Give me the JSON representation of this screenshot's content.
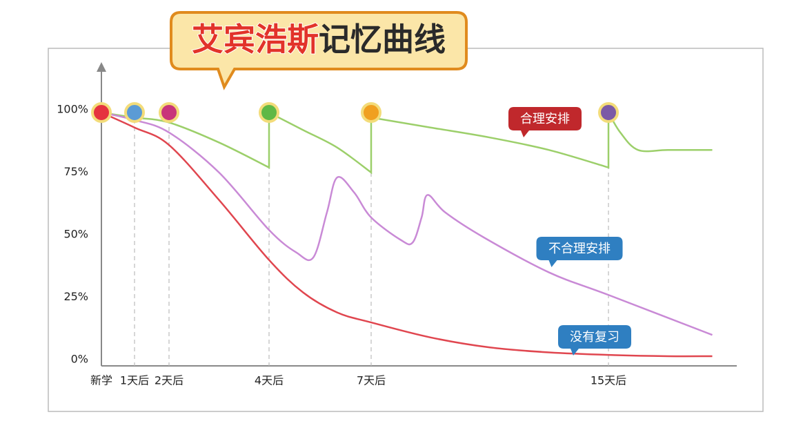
{
  "chart_data": {
    "type": "line",
    "title": [
      "艾宾浩斯",
      "记忆曲线"
    ],
    "xlim": [
      0,
      18.5
    ],
    "xticks": [
      {
        "value": 0,
        "label": "新学"
      },
      {
        "value": 1,
        "label": "1天后"
      },
      {
        "value": 2,
        "label": "2天后"
      },
      {
        "value": 4,
        "label": "4天后"
      },
      {
        "value": 7,
        "label": "7天后"
      },
      {
        "value": 15,
        "label": "15天后"
      }
    ],
    "ylim": [
      0,
      100
    ],
    "yticks": [
      {
        "value": 0,
        "label": "0%"
      },
      {
        "value": 25,
        "label": "25%"
      },
      {
        "value": 50,
        "label": "50%"
      },
      {
        "value": 75,
        "label": "75%"
      },
      {
        "value": 100,
        "label": "100%"
      }
    ],
    "series": [
      {
        "name": "合理安排",
        "color": "#9ccf6a",
        "label_color": "#c0282c",
        "x": [
          0,
          1,
          2,
          3,
          4,
          4,
          5,
          6,
          7,
          7,
          9,
          11,
          13,
          15,
          15,
          15.4,
          16,
          17,
          18.5
        ],
        "values": [
          100,
          98,
          96,
          88,
          78,
          100,
          93,
          86,
          76,
          98,
          94,
          90,
          85,
          78,
          100,
          92,
          85,
          85,
          85
        ]
      },
      {
        "name": "不合理安排",
        "color": "#c98ad6",
        "label_color": "#2f7fc1",
        "x": [
          0,
          1,
          2,
          3,
          4,
          4.8,
          5.3,
          5.7,
          6,
          6.5,
          7,
          8,
          8.4,
          8.7,
          8.9,
          9.5,
          10.8,
          13,
          15,
          18.5
        ],
        "values": [
          100,
          97,
          92,
          76,
          53,
          44,
          42,
          60,
          74,
          68,
          58,
          49,
          48,
          58,
          67,
          60,
          50,
          36,
          27,
          11
        ]
      },
      {
        "name": "没有复习",
        "color": "#e0464f",
        "label_color": "#2f7fc1",
        "x": [
          0,
          1,
          2,
          3,
          4,
          5,
          6,
          7,
          9,
          11,
          13,
          15,
          17,
          18.5
        ],
        "values": [
          100,
          94,
          87,
          65,
          41,
          28,
          20,
          16,
          10,
          6,
          4,
          3,
          2.5,
          2.5
        ]
      }
    ],
    "review_points": {
      "x": [
        0,
        1,
        2,
        4,
        7,
        15
      ],
      "values": [
        100,
        100,
        100,
        100,
        100,
        100
      ],
      "colors": [
        "#e5333f",
        "#5b9bd5",
        "#c8357a",
        "#5fb846",
        "#f0a020",
        "#7b5aa6"
      ]
    }
  }
}
